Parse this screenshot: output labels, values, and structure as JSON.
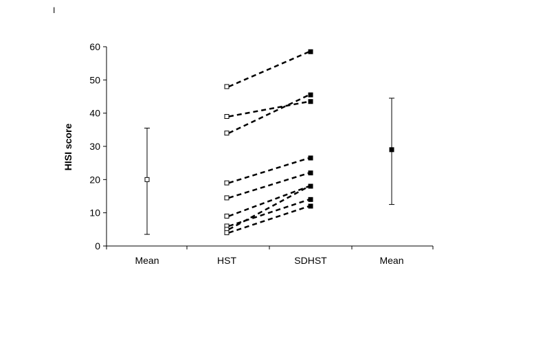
{
  "corner_mark": "I",
  "chart_data": {
    "type": "line",
    "title": "",
    "xlabel": "",
    "ylabel": "HISI score",
    "ylim": [
      0,
      60
    ],
    "yticks": [
      0,
      10,
      20,
      30,
      40,
      50,
      60
    ],
    "grid": false,
    "categories": [
      "Mean",
      "HST",
      "SDHST",
      "Mean"
    ],
    "paired_series": [
      {
        "values": [
          48,
          58.5
        ]
      },
      {
        "values": [
          39,
          43.5
        ]
      },
      {
        "values": [
          34,
          45.5
        ]
      },
      {
        "values": [
          19,
          26.5
        ]
      },
      {
        "values": [
          14.5,
          22
        ]
      },
      {
        "values": [
          9,
          18
        ]
      },
      {
        "values": [
          6,
          14
        ]
      },
      {
        "values": [
          5,
          18
        ]
      },
      {
        "values": [
          4,
          12
        ]
      }
    ],
    "means": [
      {
        "category_index": 0,
        "mean": 20,
        "low": 3.5,
        "high": 35.5,
        "marker": "open-square"
      },
      {
        "category_index": 3,
        "mean": 29,
        "low": 12.5,
        "high": 44.5,
        "marker": "filled-square"
      }
    ],
    "colors": {
      "line": "#000000",
      "open_fill": "#ffffff",
      "filled": "#000000"
    }
  }
}
